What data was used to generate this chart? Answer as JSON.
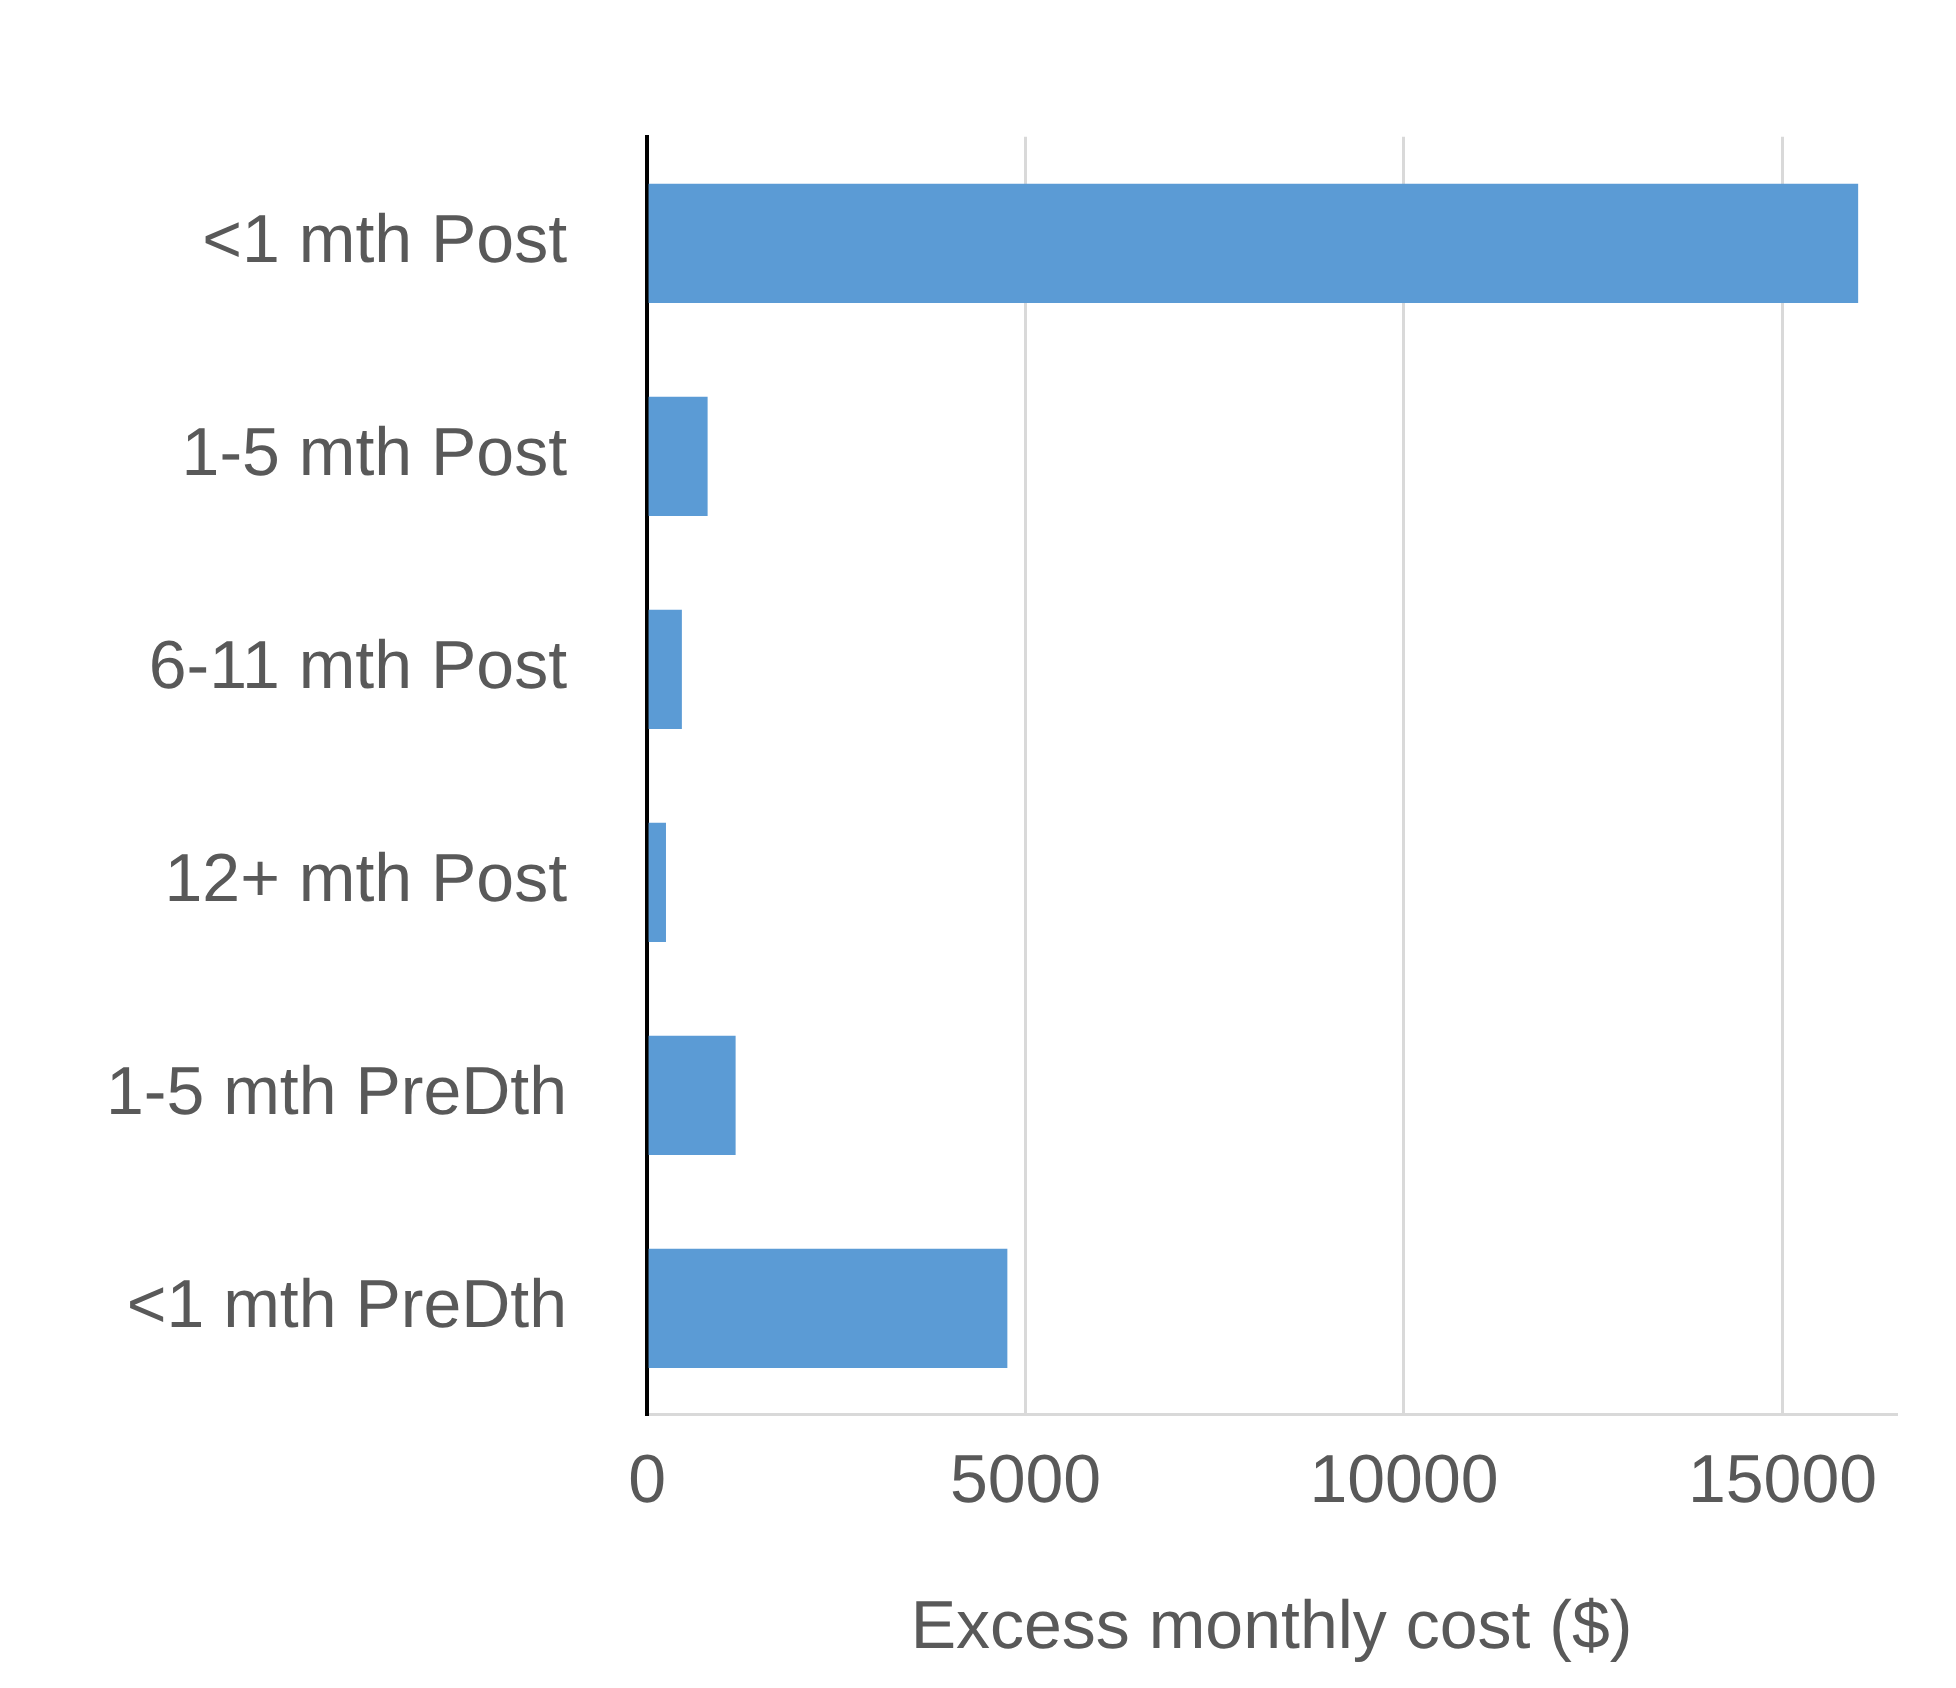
{
  "chart_data": {
    "type": "bar",
    "orientation": "horizontal",
    "xlabel": "Excess monthly cost ($)",
    "categories": [
      "<1 mth Post",
      "1-5 mth Post",
      "6-11 mth Post",
      "12+ mth Post",
      "1-5 mth PreDth",
      "<1 mth PreDth"
    ],
    "values": [
      16000,
      800,
      460,
      250,
      1170,
      4760
    ],
    "color": "#5b9bd5",
    "xlim": [
      0,
      16500
    ],
    "xticks": [
      0,
      5000,
      10000,
      15000
    ],
    "grid": "x",
    "legend": false
  }
}
